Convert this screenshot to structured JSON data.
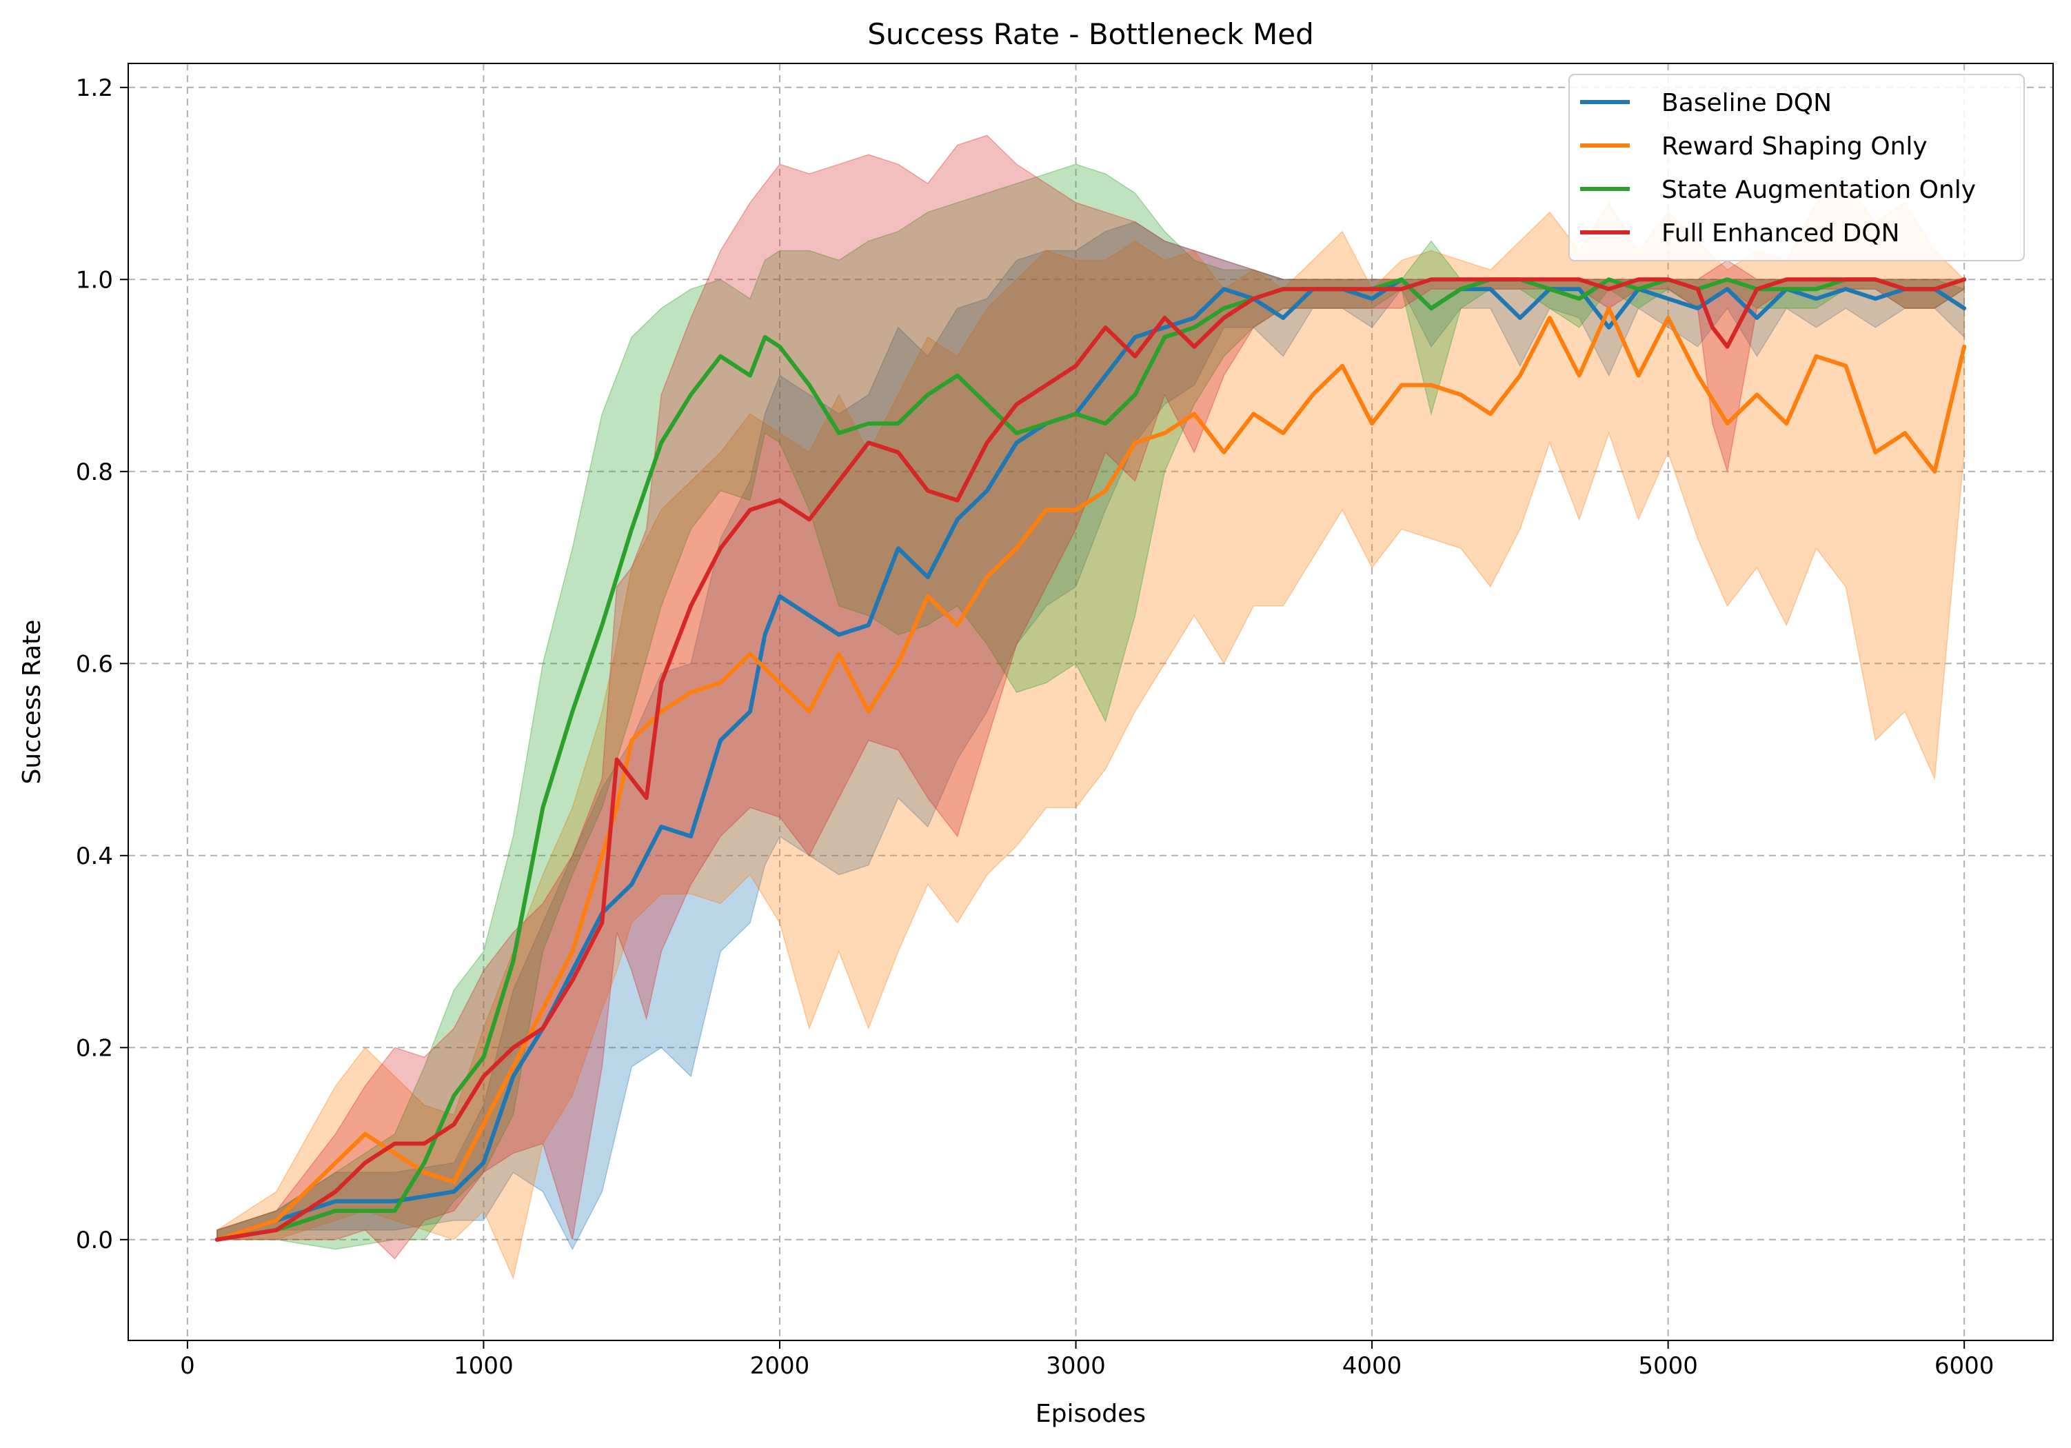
{
  "chart_data": {
    "type": "line",
    "title": "Success Rate - Bottleneck Med",
    "xlabel": "Episodes",
    "ylabel": "Success Rate",
    "xlim": [
      -200,
      6300
    ],
    "ylim": [
      -0.105,
      1.225
    ],
    "xticks": [
      0,
      1000,
      2000,
      3000,
      4000,
      5000,
      6000
    ],
    "yticks": [
      0.0,
      0.2,
      0.4,
      0.6,
      0.8,
      1.0,
      1.2
    ],
    "xtick_labels": [
      "0",
      "1000",
      "2000",
      "3000",
      "4000",
      "5000",
      "6000"
    ],
    "ytick_labels": [
      "0.0",
      "0.2",
      "0.4",
      "0.6",
      "0.8",
      "1.0",
      "1.2"
    ],
    "grid": true,
    "legend_position": "top-right",
    "series": [
      {
        "name": "Baseline DQN",
        "color": "#1f77b4",
        "x": [
          100,
          300,
          500,
          700,
          900,
          1000,
          1100,
          1200,
          1300,
          1400,
          1500,
          1600,
          1700,
          1800,
          1900,
          1950,
          2000,
          2100,
          2200,
          2300,
          2400,
          2500,
          2600,
          2700,
          2800,
          2900,
          3000,
          3100,
          3200,
          3300,
          3400,
          3500,
          3600,
          3700,
          3800,
          3900,
          4000,
          4100,
          4200,
          4300,
          4400,
          4500,
          4600,
          4700,
          4800,
          4900,
          5000,
          5100,
          5200,
          5300,
          5400,
          5500,
          5600,
          5700,
          5800,
          5900,
          6000
        ],
        "mean": [
          0.0,
          0.02,
          0.04,
          0.04,
          0.05,
          0.08,
          0.17,
          0.22,
          0.28,
          0.34,
          0.37,
          0.43,
          0.42,
          0.52,
          0.55,
          0.63,
          0.67,
          0.65,
          0.63,
          0.64,
          0.72,
          0.69,
          0.75,
          0.78,
          0.83,
          0.85,
          0.86,
          0.9,
          0.94,
          0.95,
          0.96,
          0.99,
          0.98,
          0.96,
          0.99,
          0.99,
          0.98,
          1.0,
          0.97,
          0.99,
          0.99,
          0.96,
          0.99,
          0.99,
          0.95,
          0.99,
          0.98,
          0.97,
          0.99,
          0.96,
          0.99,
          0.98,
          0.99,
          0.98,
          0.99,
          0.99,
          0.97
        ],
        "upper": [
          0.01,
          0.03,
          0.07,
          0.07,
          0.08,
          0.14,
          0.26,
          0.33,
          0.4,
          0.47,
          0.52,
          0.59,
          0.6,
          0.73,
          0.79,
          0.86,
          0.9,
          0.88,
          0.86,
          0.88,
          0.95,
          0.92,
          0.97,
          0.98,
          1.02,
          1.03,
          1.03,
          1.05,
          1.06,
          1.04,
          1.03,
          1.02,
          1.01,
          1.0,
          1.0,
          1.0,
          1.0,
          1.0,
          1.0,
          1.0,
          1.0,
          1.0,
          1.0,
          1.0,
          1.0,
          1.0,
          1.0,
          1.0,
          1.0,
          1.0,
          1.0,
          1.0,
          1.0,
          1.0,
          1.0,
          1.0,
          0.99
        ],
        "lower": [
          0.0,
          0.01,
          0.01,
          0.01,
          0.02,
          0.02,
          0.07,
          0.05,
          -0.01,
          0.05,
          0.18,
          0.2,
          0.17,
          0.3,
          0.33,
          0.39,
          0.42,
          0.4,
          0.38,
          0.39,
          0.46,
          0.43,
          0.5,
          0.55,
          0.62,
          0.66,
          0.68,
          0.76,
          0.83,
          0.87,
          0.89,
          0.95,
          0.95,
          0.92,
          0.97,
          0.97,
          0.95,
          0.99,
          0.93,
          0.97,
          0.97,
          0.91,
          0.97,
          0.96,
          0.9,
          0.97,
          0.95,
          0.93,
          0.97,
          0.92,
          0.97,
          0.95,
          0.97,
          0.95,
          0.97,
          0.97,
          0.94
        ]
      },
      {
        "name": "Reward Shaping Only",
        "color": "#ff7f0e",
        "x": [
          100,
          300,
          500,
          600,
          700,
          800,
          900,
          1000,
          1100,
          1200,
          1300,
          1400,
          1450,
          1500,
          1600,
          1700,
          1800,
          1900,
          2000,
          2100,
          2200,
          2300,
          2400,
          2500,
          2600,
          2700,
          2800,
          2900,
          3000,
          3100,
          3200,
          3300,
          3400,
          3500,
          3600,
          3700,
          3800,
          3900,
          4000,
          4100,
          4200,
          4300,
          4400,
          4500,
          4600,
          4700,
          4800,
          4900,
          5000,
          5100,
          5200,
          5300,
          5400,
          5500,
          5600,
          5700,
          5800,
          5900,
          6000
        ],
        "mean": [
          0.0,
          0.02,
          0.08,
          0.11,
          0.09,
          0.07,
          0.06,
          0.12,
          0.18,
          0.24,
          0.3,
          0.4,
          0.45,
          0.52,
          0.55,
          0.57,
          0.58,
          0.61,
          0.58,
          0.55,
          0.61,
          0.55,
          0.6,
          0.67,
          0.64,
          0.69,
          0.72,
          0.76,
          0.76,
          0.78,
          0.83,
          0.84,
          0.86,
          0.82,
          0.86,
          0.84,
          0.88,
          0.91,
          0.85,
          0.89,
          0.89,
          0.88,
          0.86,
          0.9,
          0.96,
          0.9,
          0.97,
          0.9,
          0.96,
          0.9,
          0.85,
          0.88,
          0.85,
          0.92,
          0.91,
          0.82,
          0.84,
          0.8,
          0.93
        ],
        "upper": [
          0.01,
          0.05,
          0.16,
          0.2,
          0.17,
          0.14,
          0.13,
          0.22,
          0.3,
          0.38,
          0.45,
          0.55,
          0.62,
          0.7,
          0.76,
          0.79,
          0.82,
          0.86,
          0.84,
          0.82,
          0.88,
          0.82,
          0.88,
          0.94,
          0.92,
          0.97,
          1.0,
          1.03,
          1.02,
          1.02,
          1.04,
          1.02,
          1.03,
          0.99,
          1.01,
          0.99,
          1.02,
          1.05,
          0.99,
          1.02,
          1.03,
          1.02,
          1.01,
          1.04,
          1.07,
          1.03,
          1.08,
          1.03,
          1.07,
          1.04,
          1.01,
          1.03,
          1.02,
          1.08,
          1.1,
          1.06,
          1.08,
          1.03,
          1.0
        ],
        "lower": [
          0.0,
          0.0,
          0.02,
          0.03,
          0.02,
          0.01,
          0.0,
          0.03,
          -0.04,
          0.1,
          0.15,
          0.24,
          0.28,
          0.33,
          0.36,
          0.36,
          0.35,
          0.38,
          0.33,
          0.22,
          0.3,
          0.22,
          0.3,
          0.37,
          0.33,
          0.38,
          0.41,
          0.45,
          0.45,
          0.49,
          0.55,
          0.6,
          0.65,
          0.6,
          0.66,
          0.66,
          0.71,
          0.76,
          0.7,
          0.74,
          0.73,
          0.72,
          0.68,
          0.74,
          0.83,
          0.75,
          0.84,
          0.75,
          0.82,
          0.73,
          0.66,
          0.7,
          0.64,
          0.72,
          0.68,
          0.52,
          0.55,
          0.48,
          0.82
        ]
      },
      {
        "name": "State Augmentation Only",
        "color": "#2ca02c",
        "x": [
          100,
          300,
          500,
          700,
          800,
          900,
          1000,
          1100,
          1200,
          1300,
          1400,
          1500,
          1600,
          1700,
          1800,
          1900,
          1950,
          2000,
          2100,
          2200,
          2300,
          2400,
          2500,
          2600,
          2700,
          2800,
          2900,
          3000,
          3100,
          3200,
          3300,
          3400,
          3500,
          3600,
          3700,
          3800,
          3900,
          4000,
          4100,
          4200,
          4300,
          4400,
          4500,
          4600,
          4700,
          4800,
          4900,
          5000,
          5100,
          5200,
          5300,
          5400,
          5500,
          5600,
          5700,
          5800,
          5900,
          6000
        ],
        "mean": [
          0.0,
          0.01,
          0.03,
          0.03,
          0.08,
          0.15,
          0.19,
          0.29,
          0.45,
          0.55,
          0.64,
          0.74,
          0.83,
          0.88,
          0.92,
          0.9,
          0.94,
          0.93,
          0.89,
          0.84,
          0.85,
          0.85,
          0.88,
          0.9,
          0.87,
          0.84,
          0.85,
          0.86,
          0.85,
          0.88,
          0.94,
          0.95,
          0.97,
          0.98,
          0.99,
          0.99,
          0.99,
          0.99,
          1.0,
          0.97,
          0.99,
          1.0,
          1.0,
          0.99,
          0.98,
          1.0,
          0.99,
          1.0,
          0.99,
          1.0,
          0.99,
          0.99,
          0.99,
          1.0,
          1.0,
          0.99,
          0.99,
          1.0
        ],
        "upper": [
          0.01,
          0.03,
          0.07,
          0.11,
          0.18,
          0.26,
          0.3,
          0.42,
          0.6,
          0.72,
          0.86,
          0.94,
          0.97,
          0.99,
          1.0,
          0.98,
          1.02,
          1.03,
          1.03,
          1.02,
          1.04,
          1.05,
          1.07,
          1.08,
          1.09,
          1.1,
          1.11,
          1.12,
          1.11,
          1.09,
          1.05,
          1.02,
          1.01,
          1.01,
          1.0,
          1.0,
          1.0,
          1.0,
          1.0,
          1.04,
          1.0,
          1.0,
          1.0,
          1.0,
          1.0,
          1.0,
          1.0,
          1.0,
          1.0,
          1.0,
          1.0,
          1.0,
          1.0,
          1.0,
          1.0,
          1.0,
          1.0,
          1.0
        ],
        "lower": [
          0.0,
          0.0,
          -0.01,
          0.0,
          0.0,
          0.04,
          0.07,
          0.13,
          0.3,
          0.38,
          0.45,
          0.55,
          0.66,
          0.74,
          0.78,
          0.77,
          0.84,
          0.83,
          0.76,
          0.66,
          0.65,
          0.63,
          0.64,
          0.66,
          0.62,
          0.57,
          0.58,
          0.6,
          0.54,
          0.65,
          0.8,
          0.87,
          0.92,
          0.95,
          0.97,
          0.97,
          0.97,
          0.97,
          0.99,
          0.86,
          0.97,
          0.99,
          0.99,
          0.97,
          0.95,
          0.99,
          0.97,
          0.99,
          0.97,
          0.99,
          0.97,
          0.97,
          0.97,
          0.99,
          0.99,
          0.97,
          0.97,
          0.99
        ]
      },
      {
        "name": "Full Enhanced DQN",
        "color": "#d62728",
        "x": [
          100,
          300,
          500,
          600,
          700,
          800,
          900,
          1000,
          1100,
          1200,
          1300,
          1400,
          1450,
          1500,
          1550,
          1600,
          1700,
          1800,
          1900,
          2000,
          2100,
          2200,
          2300,
          2400,
          2500,
          2600,
          2700,
          2800,
          2900,
          3000,
          3100,
          3200,
          3300,
          3400,
          3500,
          3600,
          3700,
          3800,
          3900,
          4000,
          4100,
          4200,
          4300,
          4400,
          4500,
          4600,
          4700,
          4800,
          4900,
          5000,
          5100,
          5150,
          5200,
          5300,
          5400,
          5500,
          5600,
          5700,
          5800,
          5900,
          6000
        ],
        "mean": [
          0.0,
          0.01,
          0.05,
          0.08,
          0.1,
          0.1,
          0.12,
          0.17,
          0.2,
          0.22,
          0.27,
          0.33,
          0.5,
          0.48,
          0.46,
          0.58,
          0.66,
          0.72,
          0.76,
          0.77,
          0.75,
          0.79,
          0.83,
          0.82,
          0.78,
          0.77,
          0.83,
          0.87,
          0.89,
          0.91,
          0.95,
          0.92,
          0.96,
          0.93,
          0.96,
          0.98,
          0.99,
          0.99,
          0.99,
          0.99,
          0.99,
          1.0,
          1.0,
          1.0,
          1.0,
          1.0,
          1.0,
          0.99,
          1.0,
          1.0,
          0.99,
          0.95,
          0.93,
          0.99,
          1.0,
          1.0,
          1.0,
          1.0,
          0.99,
          0.99,
          1.0
        ],
        "upper": [
          0.01,
          0.03,
          0.11,
          0.16,
          0.2,
          0.19,
          0.22,
          0.28,
          0.32,
          0.35,
          0.4,
          0.48,
          0.68,
          0.7,
          0.74,
          0.88,
          0.96,
          1.03,
          1.08,
          1.12,
          1.11,
          1.12,
          1.13,
          1.12,
          1.1,
          1.14,
          1.15,
          1.12,
          1.1,
          1.08,
          1.07,
          1.06,
          1.04,
          1.03,
          1.02,
          1.01,
          1.0,
          1.0,
          1.0,
          1.0,
          1.0,
          1.0,
          1.0,
          1.0,
          1.0,
          1.0,
          1.0,
          1.0,
          1.0,
          1.0,
          1.0,
          1.01,
          1.02,
          1.0,
          1.0,
          1.0,
          1.0,
          1.0,
          1.0,
          1.0,
          1.0
        ],
        "lower": [
          0.0,
          0.0,
          0.0,
          0.01,
          -0.02,
          0.02,
          0.03,
          0.07,
          0.09,
          0.1,
          0.0,
          0.18,
          0.32,
          0.28,
          0.23,
          0.3,
          0.37,
          0.42,
          0.45,
          0.44,
          0.4,
          0.46,
          0.52,
          0.51,
          0.46,
          0.42,
          0.52,
          0.62,
          0.68,
          0.74,
          0.82,
          0.79,
          0.88,
          0.82,
          0.9,
          0.95,
          0.97,
          0.97,
          0.97,
          0.97,
          0.97,
          0.99,
          0.99,
          0.99,
          0.99,
          0.99,
          0.99,
          0.97,
          0.99,
          0.99,
          0.97,
          0.85,
          0.8,
          0.97,
          0.99,
          0.99,
          0.99,
          0.99,
          0.97,
          0.97,
          0.99
        ]
      }
    ]
  }
}
